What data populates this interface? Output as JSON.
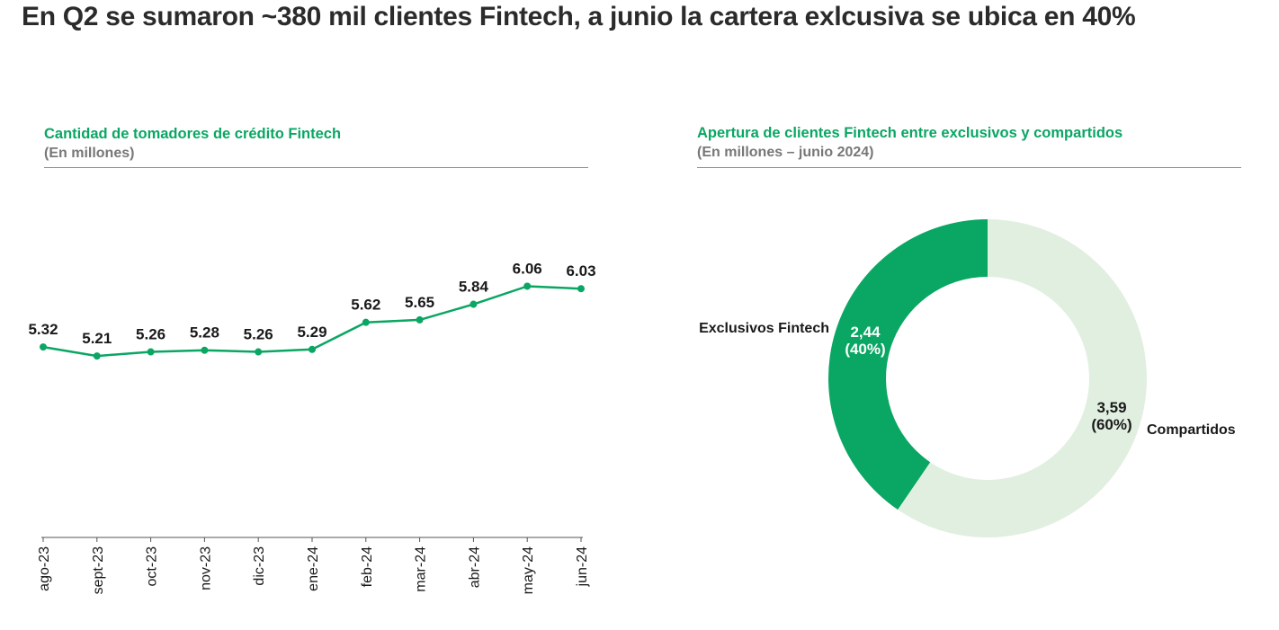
{
  "page": {
    "title": "En Q2 se sumaron ~380 mil clientes Fintech, a junio la cartera exlcusiva se ubica en 40%"
  },
  "colors": {
    "accent": "#0aa663",
    "accent_light": "#e1efe0",
    "title": "#2b2b2b",
    "subtitle": "#777777",
    "axis": "#555555"
  },
  "chart_data": [
    {
      "type": "line",
      "title": "Cantidad de tomadores de crédito Fintech",
      "subtitle": "(En millones)",
      "categories": [
        "ago-23",
        "sept-23",
        "oct-23",
        "nov-23",
        "dic-23",
        "ene-24",
        "feb-24",
        "mar-24",
        "abr-24",
        "may-24",
        "jun-24"
      ],
      "series": [
        {
          "values": [
            5.32,
            5.21,
            5.26,
            5.28,
            5.26,
            5.29,
            5.62,
            5.65,
            5.84,
            6.06,
            6.03
          ],
          "labels": [
            "5.32",
            "5.21",
            "5.26",
            "5.28",
            "5.26",
            "5.29",
            "5.62",
            "5.65",
            "5.84",
            "6.06",
            "6.03"
          ]
        }
      ],
      "xlabel": "",
      "ylabel": "",
      "ylim": [
        3.0,
        6.7
      ],
      "grid": false,
      "legend": "none"
    },
    {
      "type": "pie",
      "title": "Apertura de clientes Fintech entre exclusivos y compartidos",
      "subtitle": "(En millones – junio 2024)",
      "slices": [
        {
          "label": "Exclusivos Fintech",
          "value": 2.44,
          "value_text": "2,44",
          "percent_text": "(40%)"
        },
        {
          "label": "Compartidos",
          "value": 3.59,
          "value_text": "3,59",
          "percent_text": "(60%)"
        }
      ],
      "legend": "none"
    }
  ]
}
